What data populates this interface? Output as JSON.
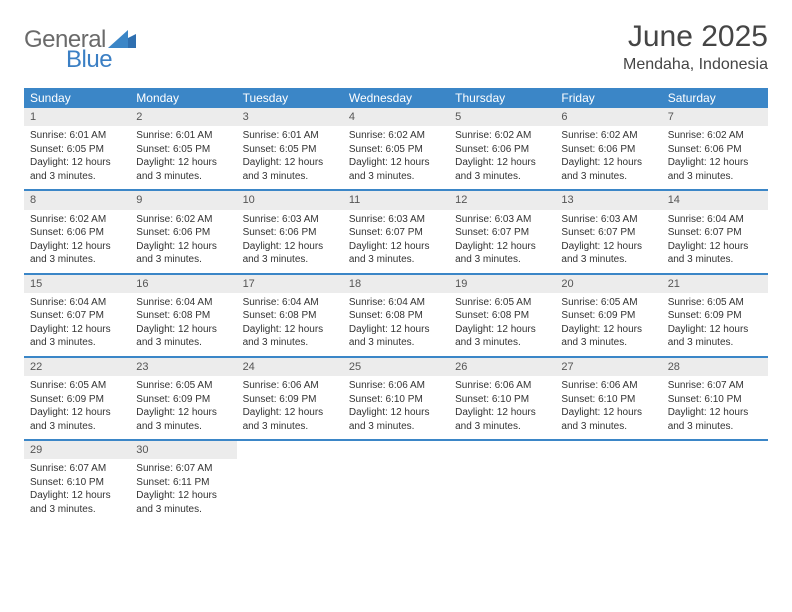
{
  "brand": {
    "word1": "General",
    "word2": "Blue"
  },
  "title": "June 2025",
  "location": "Mendaha, Indonesia",
  "colors": {
    "header_bg": "#3b86c7",
    "header_text": "#ffffff",
    "daynum_bg": "#ececec",
    "week_border": "#3b86c7",
    "body_text": "#333333",
    "title_text": "#454545",
    "logo_gray": "#6a6a6a",
    "logo_blue": "#3b7fc4"
  },
  "typography": {
    "title_fontsize": 30,
    "location_fontsize": 16,
    "dayheader_fontsize": 12,
    "daynum_fontsize": 11,
    "body_fontsize": 10
  },
  "day_names": [
    "Sunday",
    "Monday",
    "Tuesday",
    "Wednesday",
    "Thursday",
    "Friday",
    "Saturday"
  ],
  "weeks": [
    [
      {
        "n": "1",
        "sr": "Sunrise: 6:01 AM",
        "ss": "Sunset: 6:05 PM",
        "dl1": "Daylight: 12 hours",
        "dl2": "and 3 minutes."
      },
      {
        "n": "2",
        "sr": "Sunrise: 6:01 AM",
        "ss": "Sunset: 6:05 PM",
        "dl1": "Daylight: 12 hours",
        "dl2": "and 3 minutes."
      },
      {
        "n": "3",
        "sr": "Sunrise: 6:01 AM",
        "ss": "Sunset: 6:05 PM",
        "dl1": "Daylight: 12 hours",
        "dl2": "and 3 minutes."
      },
      {
        "n": "4",
        "sr": "Sunrise: 6:02 AM",
        "ss": "Sunset: 6:05 PM",
        "dl1": "Daylight: 12 hours",
        "dl2": "and 3 minutes."
      },
      {
        "n": "5",
        "sr": "Sunrise: 6:02 AM",
        "ss": "Sunset: 6:06 PM",
        "dl1": "Daylight: 12 hours",
        "dl2": "and 3 minutes."
      },
      {
        "n": "6",
        "sr": "Sunrise: 6:02 AM",
        "ss": "Sunset: 6:06 PM",
        "dl1": "Daylight: 12 hours",
        "dl2": "and 3 minutes."
      },
      {
        "n": "7",
        "sr": "Sunrise: 6:02 AM",
        "ss": "Sunset: 6:06 PM",
        "dl1": "Daylight: 12 hours",
        "dl2": "and 3 minutes."
      }
    ],
    [
      {
        "n": "8",
        "sr": "Sunrise: 6:02 AM",
        "ss": "Sunset: 6:06 PM",
        "dl1": "Daylight: 12 hours",
        "dl2": "and 3 minutes."
      },
      {
        "n": "9",
        "sr": "Sunrise: 6:02 AM",
        "ss": "Sunset: 6:06 PM",
        "dl1": "Daylight: 12 hours",
        "dl2": "and 3 minutes."
      },
      {
        "n": "10",
        "sr": "Sunrise: 6:03 AM",
        "ss": "Sunset: 6:06 PM",
        "dl1": "Daylight: 12 hours",
        "dl2": "and 3 minutes."
      },
      {
        "n": "11",
        "sr": "Sunrise: 6:03 AM",
        "ss": "Sunset: 6:07 PM",
        "dl1": "Daylight: 12 hours",
        "dl2": "and 3 minutes."
      },
      {
        "n": "12",
        "sr": "Sunrise: 6:03 AM",
        "ss": "Sunset: 6:07 PM",
        "dl1": "Daylight: 12 hours",
        "dl2": "and 3 minutes."
      },
      {
        "n": "13",
        "sr": "Sunrise: 6:03 AM",
        "ss": "Sunset: 6:07 PM",
        "dl1": "Daylight: 12 hours",
        "dl2": "and 3 minutes."
      },
      {
        "n": "14",
        "sr": "Sunrise: 6:04 AM",
        "ss": "Sunset: 6:07 PM",
        "dl1": "Daylight: 12 hours",
        "dl2": "and 3 minutes."
      }
    ],
    [
      {
        "n": "15",
        "sr": "Sunrise: 6:04 AM",
        "ss": "Sunset: 6:07 PM",
        "dl1": "Daylight: 12 hours",
        "dl2": "and 3 minutes."
      },
      {
        "n": "16",
        "sr": "Sunrise: 6:04 AM",
        "ss": "Sunset: 6:08 PM",
        "dl1": "Daylight: 12 hours",
        "dl2": "and 3 minutes."
      },
      {
        "n": "17",
        "sr": "Sunrise: 6:04 AM",
        "ss": "Sunset: 6:08 PM",
        "dl1": "Daylight: 12 hours",
        "dl2": "and 3 minutes."
      },
      {
        "n": "18",
        "sr": "Sunrise: 6:04 AM",
        "ss": "Sunset: 6:08 PM",
        "dl1": "Daylight: 12 hours",
        "dl2": "and 3 minutes."
      },
      {
        "n": "19",
        "sr": "Sunrise: 6:05 AM",
        "ss": "Sunset: 6:08 PM",
        "dl1": "Daylight: 12 hours",
        "dl2": "and 3 minutes."
      },
      {
        "n": "20",
        "sr": "Sunrise: 6:05 AM",
        "ss": "Sunset: 6:09 PM",
        "dl1": "Daylight: 12 hours",
        "dl2": "and 3 minutes."
      },
      {
        "n": "21",
        "sr": "Sunrise: 6:05 AM",
        "ss": "Sunset: 6:09 PM",
        "dl1": "Daylight: 12 hours",
        "dl2": "and 3 minutes."
      }
    ],
    [
      {
        "n": "22",
        "sr": "Sunrise: 6:05 AM",
        "ss": "Sunset: 6:09 PM",
        "dl1": "Daylight: 12 hours",
        "dl2": "and 3 minutes."
      },
      {
        "n": "23",
        "sr": "Sunrise: 6:05 AM",
        "ss": "Sunset: 6:09 PM",
        "dl1": "Daylight: 12 hours",
        "dl2": "and 3 minutes."
      },
      {
        "n": "24",
        "sr": "Sunrise: 6:06 AM",
        "ss": "Sunset: 6:09 PM",
        "dl1": "Daylight: 12 hours",
        "dl2": "and 3 minutes."
      },
      {
        "n": "25",
        "sr": "Sunrise: 6:06 AM",
        "ss": "Sunset: 6:10 PM",
        "dl1": "Daylight: 12 hours",
        "dl2": "and 3 minutes."
      },
      {
        "n": "26",
        "sr": "Sunrise: 6:06 AM",
        "ss": "Sunset: 6:10 PM",
        "dl1": "Daylight: 12 hours",
        "dl2": "and 3 minutes."
      },
      {
        "n": "27",
        "sr": "Sunrise: 6:06 AM",
        "ss": "Sunset: 6:10 PM",
        "dl1": "Daylight: 12 hours",
        "dl2": "and 3 minutes."
      },
      {
        "n": "28",
        "sr": "Sunrise: 6:07 AM",
        "ss": "Sunset: 6:10 PM",
        "dl1": "Daylight: 12 hours",
        "dl2": "and 3 minutes."
      }
    ],
    [
      {
        "n": "29",
        "sr": "Sunrise: 6:07 AM",
        "ss": "Sunset: 6:10 PM",
        "dl1": "Daylight: 12 hours",
        "dl2": "and 3 minutes."
      },
      {
        "n": "30",
        "sr": "Sunrise: 6:07 AM",
        "ss": "Sunset: 6:11 PM",
        "dl1": "Daylight: 12 hours",
        "dl2": "and 3 minutes."
      },
      null,
      null,
      null,
      null,
      null
    ]
  ]
}
